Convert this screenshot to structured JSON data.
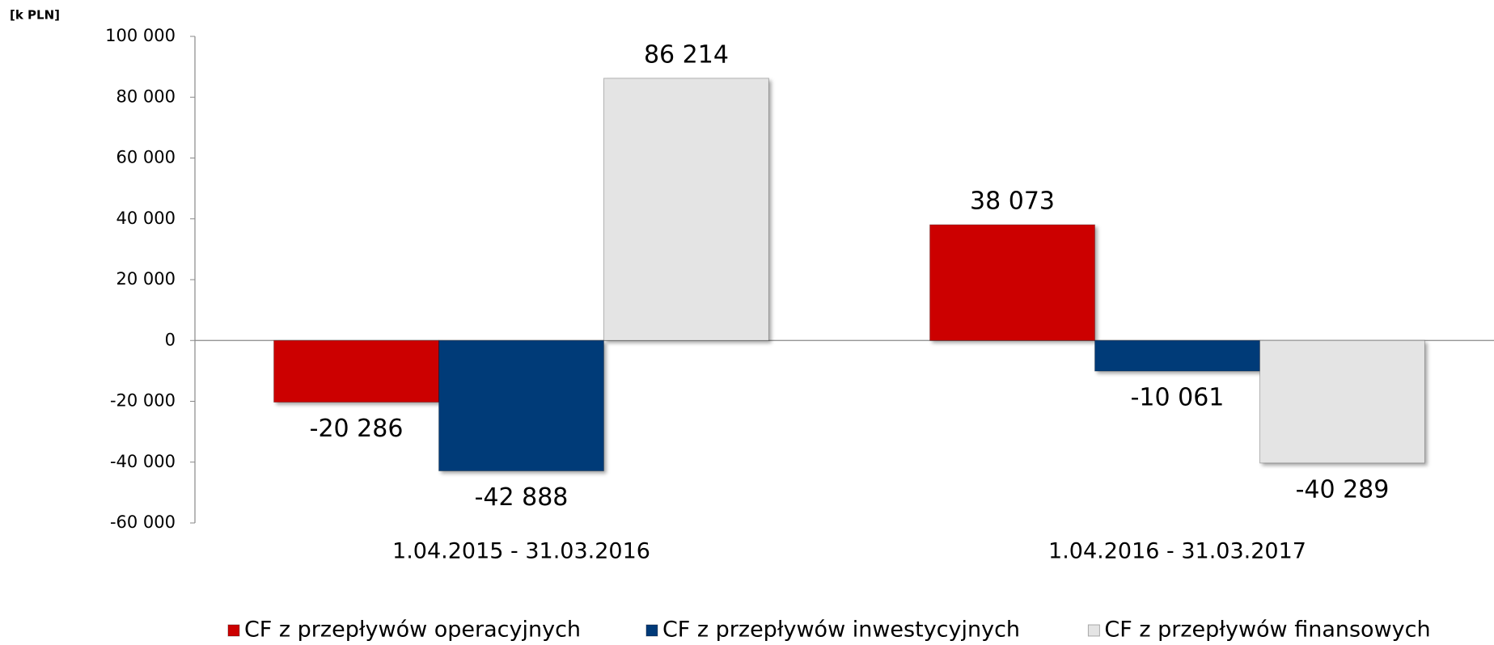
{
  "chart_data": {
    "type": "bar",
    "y_label": "[k PLN]",
    "categories": [
      "1.04.2015 - 31.03.2016",
      "1.04.2016 - 31.03.2017"
    ],
    "series": [
      {
        "name": "CF z przepływów operacyjnych",
        "color": "#cc0000",
        "values": [
          -20286,
          38073
        ],
        "value_labels": [
          "-20 286",
          "38 073"
        ]
      },
      {
        "name": "CF z przepływów inwestycyjnych",
        "color": "#003a78",
        "values": [
          -42888,
          -10061
        ],
        "value_labels": [
          "-42 888",
          "-10 061"
        ]
      },
      {
        "name": "CF z przepływów finansowych",
        "color": "#e4e4e4",
        "values": [
          86214,
          -40289
        ],
        "value_labels": [
          "86 214",
          "-40 289"
        ]
      }
    ],
    "ylim": [
      -60000,
      100000
    ],
    "yticks": [
      {
        "value": -60000,
        "label": "-60 000"
      },
      {
        "value": -40000,
        "label": "-40 000"
      },
      {
        "value": -20000,
        "label": "-20 000"
      },
      0,
      {
        "value": 20000,
        "label": "20 000"
      },
      {
        "value": 40000,
        "label": "40 000"
      },
      {
        "value": 60000,
        "label": "60 000"
      },
      {
        "value": 80000,
        "label": "80 000"
      },
      {
        "value": 100000,
        "label": "100 000"
      }
    ],
    "legend": "bottom"
  }
}
